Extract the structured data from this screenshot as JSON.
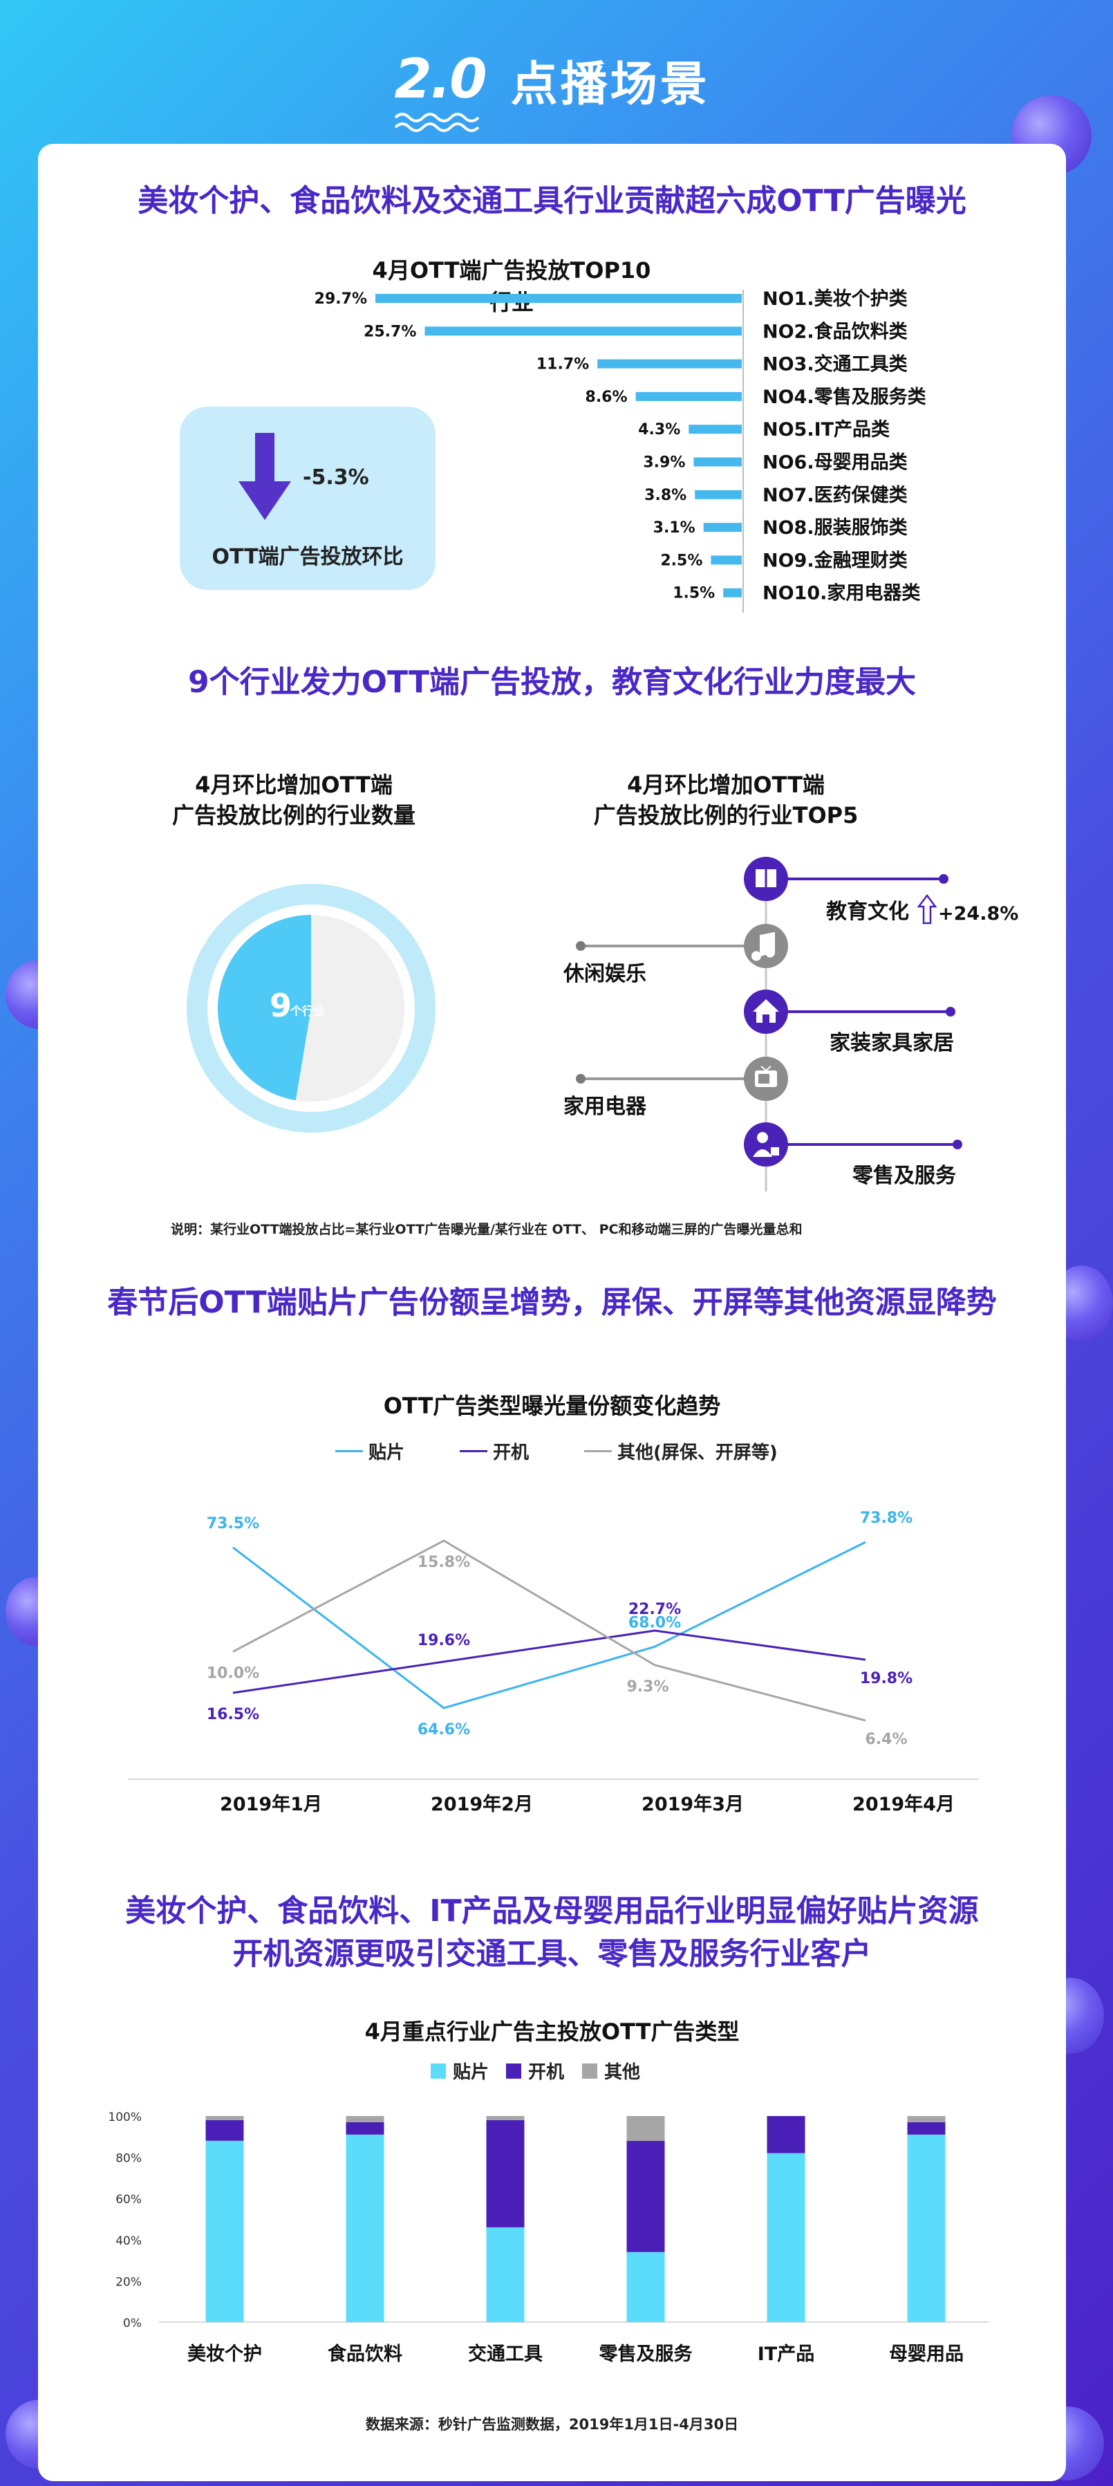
{
  "header": {
    "logo": "2.0",
    "title": "点播场景"
  },
  "section1": {
    "title": "美妆个护、食品饮料及交通工具行业贡献超六成OTT广告曝光",
    "change_value": "-5.3%",
    "change_label": "OTT端广告投放环比"
  },
  "section2": {
    "title": "9个行业发力OTT端广告投放，教育文化行业力度最大",
    "left_title_1": "4月环比增加OTT端",
    "left_title_2": "广告投放比例的行业数量",
    "right_title_1": "4月环比增加OTT端",
    "right_title_2": "广告投放比例的行业TOP5",
    "count_number": "9",
    "count_unit": "个行业",
    "top5": [
      {
        "name": "教育文化",
        "icon": "book-icon",
        "change": "+24.8%"
      },
      {
        "name": "休闲娱乐",
        "icon": "music-icon"
      },
      {
        "name": "家装家具家居",
        "icon": "home-icon"
      },
      {
        "name": "家用电器",
        "icon": "tv-icon"
      },
      {
        "name": "零售及服务",
        "icon": "cashier-icon"
      }
    ],
    "note": "说明：某行业OTT端投放占比=某行业OTT广告曝光量/某行业在 OTT、 PC和移动端三屏的广告曝光量总和"
  },
  "section3": {
    "title": "春节后OTT端贴片广告份额呈增势，屏保、开屏等其他资源显降势"
  },
  "section4": {
    "title_line1": "美妆个护、食品饮料、IT产品及母婴用品行业明显偏好贴片资源",
    "title_line2": "开机资源更吸引交通工具、零售及服务行业客户"
  },
  "source": "数据来源：秒针广告监测数据，2019年1月1日-4月30日",
  "colors": {
    "title_purple": "#4a28c8",
    "bar_blue": "#45b9ee",
    "line_blue": "#3ab4f0",
    "line_purple": "#4a22b8",
    "line_gray": "#a6a6a6",
    "stack_blue": "#5bdcfa",
    "stack_purple": "#4a1fb8",
    "stack_gray": "#a6a6a6"
  },
  "chart_data": [
    {
      "type": "bar",
      "orientation": "horizontal",
      "title": "4月OTT端广告投放TOP10行业",
      "categories": [
        "NO1.美妆个护类",
        "NO2.食品饮料类",
        "NO3.交通工具类",
        "NO4.零售及服务类",
        "NO5.IT产品类",
        "NO6.母婴用品类",
        "NO7.医药保健类",
        "NO8.服装服饰类",
        "NO9.金融理财类",
        "NO10.家用电器类"
      ],
      "values": [
        29.7,
        25.7,
        11.7,
        8.6,
        4.3,
        3.9,
        3.8,
        3.1,
        2.5,
        1.5
      ],
      "labels": [
        "29.7%",
        "25.7%",
        "11.7%",
        "8.6%",
        "4.3%",
        "3.9%",
        "3.8%",
        "3.1%",
        "2.5%",
        "1.5%"
      ]
    },
    {
      "type": "pie",
      "values": [
        9,
        10
      ],
      "center_label": "9个行业"
    },
    {
      "type": "line",
      "title": "OTT广告类型曝光量份额变化趋势",
      "categories": [
        "2019年1月",
        "2019年2月",
        "2019年3月",
        "2019年4月"
      ],
      "ylim": [
        0,
        30
      ],
      "series": [
        {
          "name": "贴片",
          "values": [
            73.5,
            64.6,
            68.0,
            73.8
          ],
          "labels": [
            "73.5%",
            "64.6%",
            "68.0%",
            "73.8%"
          ]
        },
        {
          "name": "开机",
          "values": [
            16.5,
            19.6,
            22.7,
            19.8
          ],
          "labels": [
            "16.5%",
            "19.6%",
            "22.7%",
            "19.8%"
          ]
        },
        {
          "name": "其他(屏保、开屏等)",
          "values": [
            10.0,
            15.8,
            9.3,
            6.4
          ],
          "labels": [
            "10.0%",
            "15.8%",
            "9.3%",
            "6.4%"
          ]
        }
      ]
    },
    {
      "type": "bar",
      "stacked": true,
      "title": "4月重点行业广告主投放OTT广告类型",
      "categories": [
        "美妆个护",
        "食品饮料",
        "交通工具",
        "零售及服务",
        "IT产品",
        "母婴用品"
      ],
      "yticks": [
        "0%",
        "20%",
        "40%",
        "60%",
        "80%",
        "100%"
      ],
      "ylim": [
        0,
        100
      ],
      "series": [
        {
          "name": "贴片",
          "values": [
            88,
            91,
            46,
            34,
            82,
            91
          ]
        },
        {
          "name": "开机",
          "values": [
            10,
            6,
            52,
            54,
            18,
            6
          ]
        },
        {
          "name": "其他",
          "values": [
            2,
            3,
            2,
            12,
            0,
            3
          ]
        }
      ]
    }
  ]
}
